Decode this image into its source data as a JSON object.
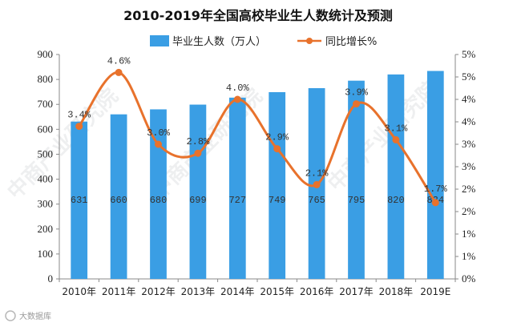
{
  "chart_data": {
    "type": "bar",
    "title": "2010-2019年全国高校毕业生人数统计及预测",
    "categories": [
      "2010年",
      "2011年",
      "2012年",
      "2013年",
      "2014年",
      "2015年",
      "2016年",
      "2017年",
      "2018年",
      "2019E"
    ],
    "series": [
      {
        "name": "毕业生人数（万人）",
        "type": "bar",
        "axis": "left",
        "values": [
          631,
          660,
          680,
          699,
          727,
          749,
          765,
          795,
          820,
          834
        ],
        "labels": [
          "631",
          "660",
          "680",
          "699",
          "727",
          "749",
          "765",
          "795",
          "820",
          "834"
        ]
      },
      {
        "name": "同比增长%",
        "type": "line",
        "axis": "right",
        "values": [
          3.4,
          4.6,
          3.0,
          2.8,
          4.0,
          2.9,
          2.1,
          3.9,
          3.1,
          1.7
        ],
        "labels": [
          "3.4%",
          "4.6%",
          "3.0%",
          "2.8%",
          "4.0%",
          "2.9%",
          "2.1%",
          "3.9%",
          "3.1%",
          "1.7%"
        ]
      }
    ],
    "left_axis": {
      "min": 0,
      "max": 900,
      "ticks": [
        "0",
        "100",
        "200",
        "300",
        "400",
        "500",
        "600",
        "700",
        "800",
        "900"
      ]
    },
    "right_axis": {
      "min": 0,
      "max": 5,
      "ticks": [
        "0%",
        "1%",
        "1%",
        "2%",
        "2%",
        "3%",
        "3%",
        "4%",
        "4%",
        "5%",
        "5%"
      ]
    },
    "grid": false,
    "legend_position": "top-center",
    "colors": {
      "bar": "#3a9ee4",
      "line": "#e8722c"
    }
  },
  "source": {
    "text": "大数据库",
    "watermark": "中商产业研究院"
  }
}
